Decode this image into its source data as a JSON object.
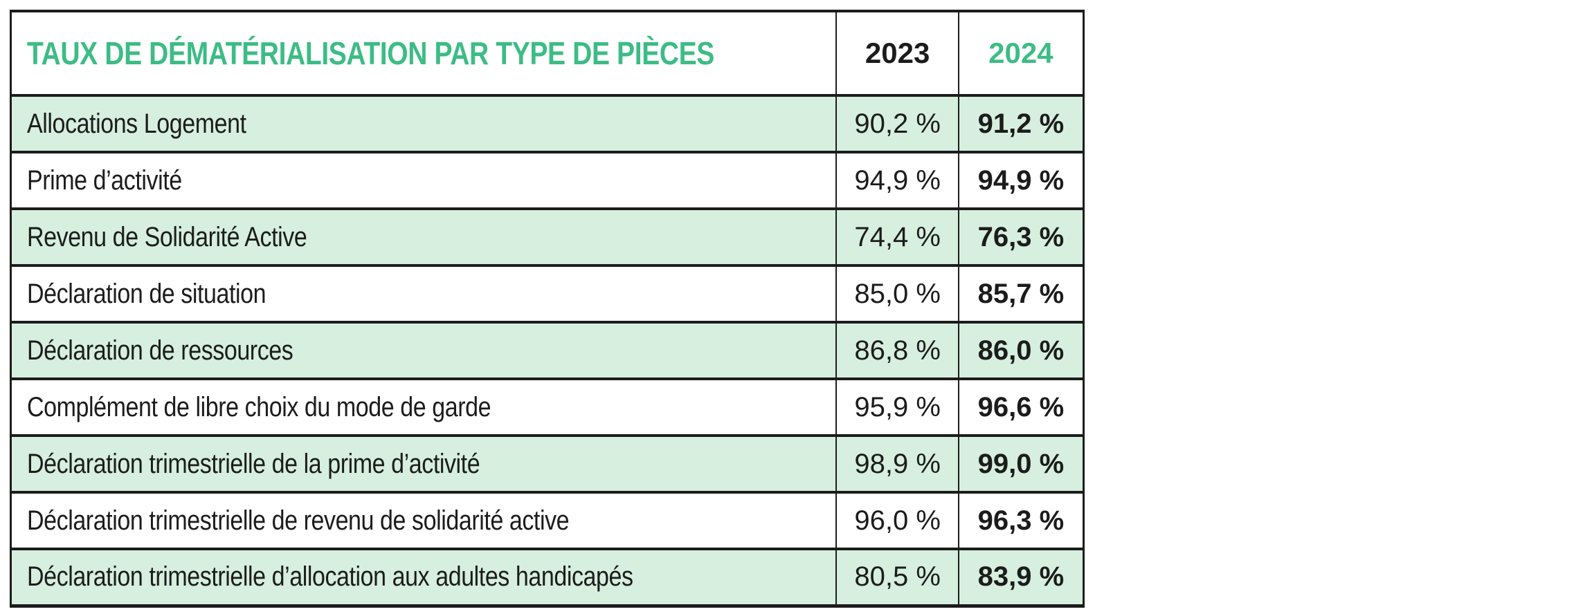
{
  "colors": {
    "accent_green": "#3dbc86",
    "row_green_background": "#d6efdf",
    "border_black": "#1c1c1c",
    "text_black": "#1c1c1c",
    "page_background": "#ffffff"
  },
  "table": {
    "title": "TAUX DE DÉMATÉRIALISATION PAR TYPE DE PIÈCES",
    "columns": [
      "2023",
      "2024"
    ],
    "rows": [
      {
        "label": "Allocations Logement",
        "y2023": "90,2 %",
        "y2024": "91,2 %"
      },
      {
        "label": "Prime d’activité",
        "y2023": "94,9 %",
        "y2024": "94,9 %"
      },
      {
        "label": "Revenu de Solidarité Active",
        "y2023": "74,4 %",
        "y2024": "76,3 %"
      },
      {
        "label": "Déclaration de situation",
        "y2023": "85,0 %",
        "y2024": "85,7 %"
      },
      {
        "label": "Déclaration de ressources",
        "y2023": "86,8 %",
        "y2024": "86,0 %"
      },
      {
        "label": "Complément de libre choix du mode de garde",
        "y2023": "95,9 %",
        "y2024": "96,6 %"
      },
      {
        "label": "Déclaration trimestrielle de la prime d’activité",
        "y2023": "98,9 %",
        "y2024": "99,0 %"
      },
      {
        "label": "Déclaration trimestrielle de revenu de solidarité active",
        "y2023": "96,0 %",
        "y2024": "96,3 %"
      },
      {
        "label": "Déclaration trimestrielle d’allocation aux adultes handicapés",
        "y2023": "80,5 %",
        "y2024": "83,9 %"
      }
    ]
  },
  "chart_data": {
    "type": "table",
    "title": "TAUX DE DÉMATÉRIALISATION PAR TYPE DE PIÈCES",
    "columns": [
      "2023",
      "2024"
    ],
    "unit": "%",
    "decimal_separator": ",",
    "categories": [
      "Allocations Logement",
      "Prime d’activité",
      "Revenu de Solidarité Active",
      "Déclaration de situation",
      "Déclaration de ressources",
      "Complément de libre choix du mode de garde",
      "Déclaration trimestrielle de la prime d’activité",
      "Déclaration trimestrielle de revenu de solidarité active",
      "Déclaration trimestrielle d’allocation aux adultes handicapés"
    ],
    "series": [
      {
        "name": "2023",
        "values": [
          90.2,
          94.9,
          74.4,
          85.0,
          86.8,
          95.9,
          98.9,
          96.0,
          80.5
        ]
      },
      {
        "name": "2024",
        "values": [
          91.2,
          94.9,
          76.3,
          85.7,
          86.0,
          96.6,
          99.0,
          96.3,
          83.9
        ]
      }
    ],
    "layout_hints": {
      "zebra_striping": "odd rows light green, even rows white",
      "value_style_2024": "bold",
      "header_2024_color": "accent green",
      "grid": "full black borders"
    }
  }
}
